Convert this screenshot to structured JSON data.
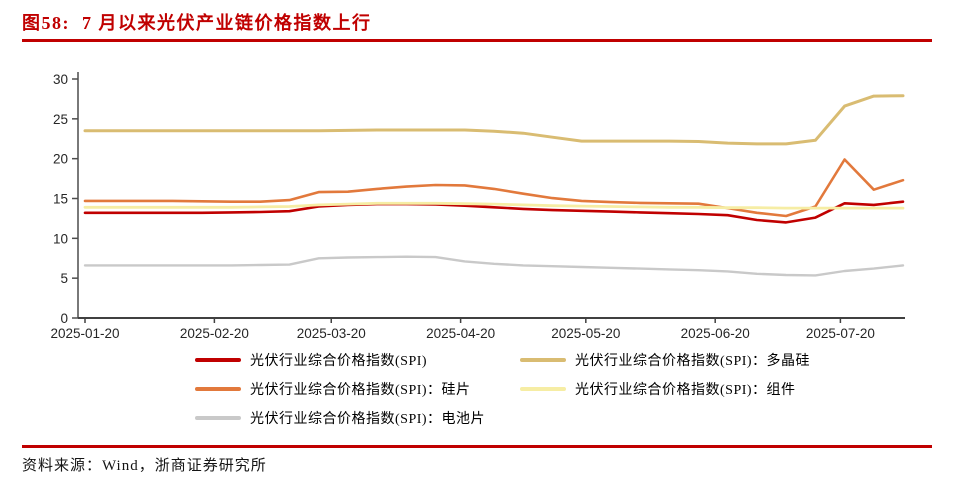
{
  "figure": {
    "title": "图58:  7 月以来光伏产业链价格指数上行",
    "source": "资料来源：Wind，浙商证券研究所"
  },
  "colors": {
    "accent_red": "#C00000",
    "series_spi": "#C00000",
    "series_polysilicon": "#D9BC72",
    "series_wafer": "#E2793C",
    "series_module": "#F6EDA4",
    "series_cell": "#C9C9C9",
    "axis": "#4d4d4d"
  },
  "legend": {
    "items": [
      {
        "label": "光伏行业综合价格指数(SPI)",
        "color": "#C00000"
      },
      {
        "label": "光伏行业综合价格指数(SPI)：多晶硅",
        "color": "#D9BC72"
      },
      {
        "label": "光伏行业综合价格指数(SPI)：硅片",
        "color": "#E2793C"
      },
      {
        "label": "光伏行业综合价格指数(SPI)：组件",
        "color": "#F6EDA4"
      },
      {
        "label": "光伏行业综合价格指数(SPI)：电池片",
        "color": "#C9C9C9"
      }
    ]
  },
  "chart_data": {
    "type": "line",
    "title": "图58:  7 月以来光伏产业链价格指数上行",
    "xlabel": "",
    "ylabel": "",
    "ylim": [
      0,
      30
    ],
    "y_ticks": [
      0,
      5,
      10,
      15,
      20,
      25,
      30
    ],
    "grid": false,
    "legend_position": "bottom",
    "x_tick_labels": [
      "2025-01-20",
      "2025-02-20",
      "2025-03-20",
      "2025-04-20",
      "2025-05-20",
      "2025-06-20",
      "2025-07-20"
    ],
    "x": [
      "2025-01-20",
      "2025-01-27",
      "2025-02-03",
      "2025-02-10",
      "2025-02-17",
      "2025-02-24",
      "2025-03-03",
      "2025-03-10",
      "2025-03-17",
      "2025-03-24",
      "2025-03-31",
      "2025-04-07",
      "2025-04-14",
      "2025-04-21",
      "2025-04-28",
      "2025-05-05",
      "2025-05-12",
      "2025-05-19",
      "2025-05-26",
      "2025-06-02",
      "2025-06-09",
      "2025-06-16",
      "2025-06-23",
      "2025-06-30",
      "2025-07-07",
      "2025-07-14",
      "2025-07-21",
      "2025-07-28",
      "2025-08-04"
    ],
    "series": [
      {
        "name": "光伏行业综合价格指数(SPI)",
        "color": "#C00000",
        "values": [
          13.2,
          13.2,
          13.2,
          13.2,
          13.2,
          13.25,
          13.3,
          13.4,
          14.0,
          14.2,
          14.3,
          14.3,
          14.25,
          14.1,
          13.9,
          13.7,
          13.55,
          13.45,
          13.35,
          13.25,
          13.15,
          13.05,
          12.9,
          12.3,
          12.0,
          12.6,
          14.4,
          14.2,
          14.6
        ]
      },
      {
        "name": "光伏行业综合价格指数(SPI)：多晶硅",
        "color": "#D9BC72",
        "values": [
          23.5,
          23.5,
          23.5,
          23.5,
          23.5,
          23.5,
          23.5,
          23.5,
          23.5,
          23.55,
          23.6,
          23.6,
          23.6,
          23.6,
          23.45,
          23.2,
          22.7,
          22.2,
          22.2,
          22.2,
          22.2,
          22.15,
          21.95,
          21.85,
          21.85,
          22.3,
          26.6,
          27.85,
          27.9
        ]
      },
      {
        "name": "光伏行业综合价格指数(SPI)：硅片",
        "color": "#E2793C",
        "values": [
          14.7,
          14.7,
          14.7,
          14.7,
          14.65,
          14.6,
          14.6,
          14.8,
          15.8,
          15.85,
          16.2,
          16.5,
          16.7,
          16.65,
          16.2,
          15.6,
          15.05,
          14.7,
          14.55,
          14.45,
          14.4,
          14.35,
          13.8,
          13.2,
          12.8,
          14.0,
          19.9,
          16.1,
          17.3
        ]
      },
      {
        "name": "光伏行业综合价格指数(SPI)：组件",
        "color": "#F6EDA4",
        "values": [
          13.9,
          13.9,
          13.9,
          13.9,
          13.9,
          13.9,
          13.95,
          14.0,
          14.2,
          14.3,
          14.4,
          14.4,
          14.4,
          14.35,
          14.3,
          14.2,
          14.1,
          14.05,
          14.0,
          13.95,
          13.9,
          13.9,
          13.85,
          13.85,
          13.8,
          13.8,
          13.8,
          13.8,
          13.8
        ]
      },
      {
        "name": "光伏行业综合价格指数(SPI)：电池片",
        "color": "#C9C9C9",
        "values": [
          6.6,
          6.6,
          6.6,
          6.6,
          6.6,
          6.6,
          6.65,
          6.7,
          7.5,
          7.6,
          7.65,
          7.7,
          7.65,
          7.1,
          6.8,
          6.6,
          6.5,
          6.4,
          6.3,
          6.2,
          6.1,
          6.0,
          5.85,
          5.55,
          5.4,
          5.35,
          5.9,
          6.2,
          6.6
        ]
      }
    ]
  }
}
